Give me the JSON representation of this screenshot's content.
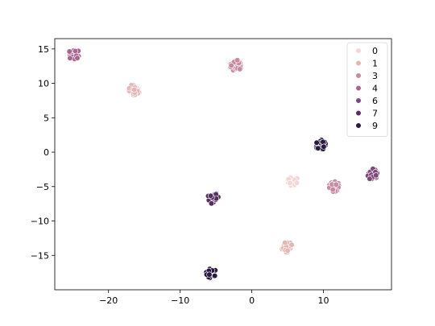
{
  "chart_data": {
    "type": "scatter",
    "title": "",
    "xlabel": "",
    "ylabel": "",
    "xlim": [
      -27.5,
      19.5
    ],
    "ylim": [
      -20,
      16.5
    ],
    "xticks": [
      -20,
      -10,
      0,
      10
    ],
    "yticks": [
      -15,
      -10,
      -5,
      0,
      5,
      10,
      15
    ],
    "grid": false,
    "legend_position": "top-right",
    "series": [
      {
        "name": "0",
        "color": "#f1d7d5",
        "clusters": [
          {
            "x": 5.6,
            "y": -4.1
          }
        ]
      },
      {
        "name": "1",
        "color": "#e4b6b4",
        "clusters": [
          {
            "x": 4.9,
            "y": -13.8
          },
          {
            "x": -16.4,
            "y": 9.1
          }
        ]
      },
      {
        "name": "3",
        "color": "#c98aa1",
        "clusters": [
          {
            "x": -2.2,
            "y": 12.6
          },
          {
            "x": 11.6,
            "y": -5.0
          }
        ]
      },
      {
        "name": "4",
        "color": "#a9658f",
        "clusters": [
          {
            "x": -24.8,
            "y": 14.2
          }
        ]
      },
      {
        "name": "6",
        "color": "#7e4878",
        "clusters": [
          {
            "x": 16.9,
            "y": -3.2
          }
        ]
      },
      {
        "name": "7",
        "color": "#55305f",
        "clusters": [
          {
            "x": -5.4,
            "y": -6.7
          }
        ]
      },
      {
        "name": "9",
        "color": "#2b1a3f",
        "clusters": [
          {
            "x": -5.6,
            "y": -17.6
          },
          {
            "x": 9.6,
            "y": 1.1
          }
        ]
      }
    ]
  }
}
